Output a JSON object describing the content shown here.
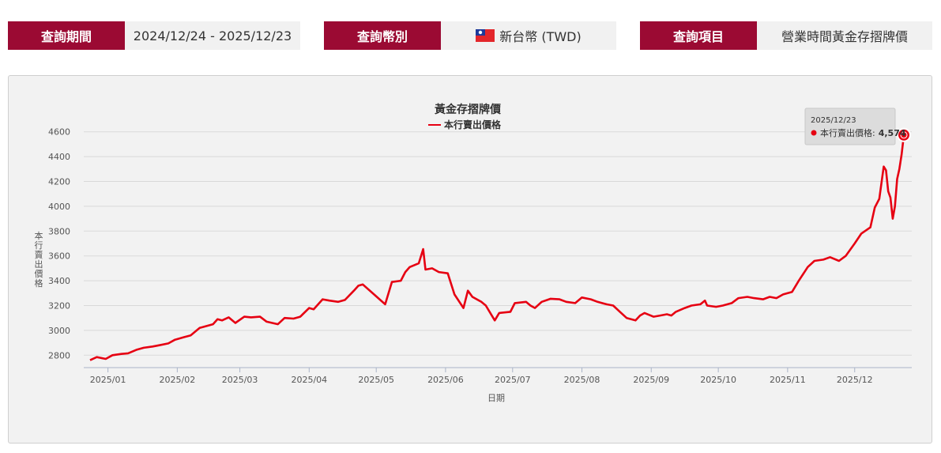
{
  "query_bar": {
    "period_label": "查詢期間",
    "period_value": "2024/12/24 - 2025/12/23",
    "currency_label": "查詢幣別",
    "currency_value": "新台幣 (TWD)",
    "currency_flag_icon": "taiwan-flag-icon",
    "item_label": "查詢項目",
    "item_value": "營業時間黃金存摺牌價"
  },
  "colors": {
    "label_bg": "#9b0a33",
    "value_bg": "#f1f1f1",
    "series_line": "#e60012"
  },
  "chart_data": {
    "type": "line",
    "title": "黃金存摺牌價",
    "xlabel": "日期",
    "ylabel": "本行賣出價格",
    "ylim": [
      2700,
      4700
    ],
    "y_ticks": [
      2800,
      3000,
      3200,
      3400,
      3600,
      3800,
      4000,
      4200,
      4400,
      4600
    ],
    "x_range": [
      "2024-12-24",
      "2025-12-23"
    ],
    "x_ticks": [
      {
        "date": "2025-01-01",
        "label": "2025/01"
      },
      {
        "date": "2025-02-01",
        "label": "2025/02"
      },
      {
        "date": "2025-03-01",
        "label": "2025/03"
      },
      {
        "date": "2025-04-01",
        "label": "2025/04"
      },
      {
        "date": "2025-05-01",
        "label": "2025/05"
      },
      {
        "date": "2025-06-01",
        "label": "2025/06"
      },
      {
        "date": "2025-07-01",
        "label": "2025/07"
      },
      {
        "date": "2025-08-01",
        "label": "2025/08"
      },
      {
        "date": "2025-09-01",
        "label": "2025/09"
      },
      {
        "date": "2025-10-01",
        "label": "2025/10"
      },
      {
        "date": "2025-11-01",
        "label": "2025/11"
      },
      {
        "date": "2025-12-01",
        "label": "2025/12"
      }
    ],
    "grid": "horizontal",
    "legend": "top-center",
    "series": [
      {
        "name": "本行賣出價格",
        "color": "#e60012",
        "points": [
          [
            "2024-12-24",
            2760
          ],
          [
            "2024-12-27",
            2785
          ],
          [
            "2024-12-31",
            2770
          ],
          [
            "2025-01-03",
            2800
          ],
          [
            "2025-01-07",
            2810
          ],
          [
            "2025-01-10",
            2815
          ],
          [
            "2025-01-14",
            2845
          ],
          [
            "2025-01-17",
            2860
          ],
          [
            "2025-01-21",
            2870
          ],
          [
            "2025-01-24",
            2880
          ],
          [
            "2025-01-28",
            2895
          ],
          [
            "2025-01-31",
            2925
          ],
          [
            "2025-02-04",
            2945
          ],
          [
            "2025-02-07",
            2960
          ],
          [
            "2025-02-11",
            3020
          ],
          [
            "2025-02-13",
            3030
          ],
          [
            "2025-02-17",
            3050
          ],
          [
            "2025-02-19",
            3090
          ],
          [
            "2025-02-21",
            3080
          ],
          [
            "2025-02-24",
            3105
          ],
          [
            "2025-02-27",
            3060
          ],
          [
            "2025-03-03",
            3110
          ],
          [
            "2025-03-06",
            3105
          ],
          [
            "2025-03-10",
            3110
          ],
          [
            "2025-03-13",
            3070
          ],
          [
            "2025-03-18",
            3050
          ],
          [
            "2025-03-21",
            3100
          ],
          [
            "2025-03-25",
            3095
          ],
          [
            "2025-03-28",
            3110
          ],
          [
            "2025-04-01",
            3180
          ],
          [
            "2025-04-03",
            3170
          ],
          [
            "2025-04-07",
            3250
          ],
          [
            "2025-04-10",
            3240
          ],
          [
            "2025-04-14",
            3230
          ],
          [
            "2025-04-17",
            3245
          ],
          [
            "2025-04-21",
            3320
          ],
          [
            "2025-04-23",
            3360
          ],
          [
            "2025-04-25",
            3370
          ],
          [
            "2025-04-30",
            3290
          ],
          [
            "2025-05-05",
            3210
          ],
          [
            "2025-05-08",
            3390
          ],
          [
            "2025-05-12",
            3400
          ],
          [
            "2025-05-14",
            3470
          ],
          [
            "2025-05-16",
            3510
          ],
          [
            "2025-05-20",
            3540
          ],
          [
            "2025-05-22",
            3655
          ],
          [
            "2025-05-23",
            3490
          ],
          [
            "2025-05-26",
            3500
          ],
          [
            "2025-05-29",
            3470
          ],
          [
            "2025-06-02",
            3460
          ],
          [
            "2025-06-05",
            3290
          ],
          [
            "2025-06-09",
            3180
          ],
          [
            "2025-06-11",
            3320
          ],
          [
            "2025-06-13",
            3270
          ],
          [
            "2025-06-17",
            3230
          ],
          [
            "2025-06-19",
            3200
          ],
          [
            "2025-06-23",
            3080
          ],
          [
            "2025-06-25",
            3140
          ],
          [
            "2025-06-30",
            3150
          ],
          [
            "2025-07-02",
            3220
          ],
          [
            "2025-07-07",
            3230
          ],
          [
            "2025-07-09",
            3200
          ],
          [
            "2025-07-11",
            3180
          ],
          [
            "2025-07-14",
            3230
          ],
          [
            "2025-07-18",
            3255
          ],
          [
            "2025-07-22",
            3250
          ],
          [
            "2025-07-25",
            3230
          ],
          [
            "2025-07-29",
            3220
          ],
          [
            "2025-08-01",
            3265
          ],
          [
            "2025-08-05",
            3250
          ],
          [
            "2025-08-08",
            3230
          ],
          [
            "2025-08-12",
            3210
          ],
          [
            "2025-08-15",
            3200
          ],
          [
            "2025-08-18",
            3150
          ],
          [
            "2025-08-21",
            3100
          ],
          [
            "2025-08-25",
            3080
          ],
          [
            "2025-08-27",
            3120
          ],
          [
            "2025-08-29",
            3140
          ],
          [
            "2025-09-02",
            3110
          ],
          [
            "2025-09-05",
            3120
          ],
          [
            "2025-09-08",
            3130
          ],
          [
            "2025-09-10",
            3120
          ],
          [
            "2025-09-12",
            3150
          ],
          [
            "2025-09-16",
            3180
          ],
          [
            "2025-09-19",
            3200
          ],
          [
            "2025-09-23",
            3210
          ],
          [
            "2025-09-25",
            3240
          ],
          [
            "2025-09-26",
            3200
          ],
          [
            "2025-09-30",
            3190
          ],
          [
            "2025-10-03",
            3200
          ],
          [
            "2025-10-07",
            3220
          ],
          [
            "2025-10-10",
            3260
          ],
          [
            "2025-10-14",
            3270
          ],
          [
            "2025-10-17",
            3260
          ],
          [
            "2025-10-21",
            3250
          ],
          [
            "2025-10-24",
            3270
          ],
          [
            "2025-10-27",
            3260
          ],
          [
            "2025-10-30",
            3290
          ],
          [
            "2025-11-03",
            3310
          ],
          [
            "2025-11-06",
            3400
          ],
          [
            "2025-11-10",
            3510
          ],
          [
            "2025-11-13",
            3560
          ],
          [
            "2025-11-17",
            3570
          ],
          [
            "2025-11-20",
            3590
          ],
          [
            "2025-11-24",
            3560
          ],
          [
            "2025-11-27",
            3600
          ],
          [
            "2025-12-01",
            3700
          ],
          [
            "2025-12-04",
            3780
          ],
          [
            "2025-12-08",
            3830
          ],
          [
            "2025-12-10",
            3990
          ],
          [
            "2025-12-12",
            4060
          ],
          [
            "2025-12-14",
            4320
          ],
          [
            "2025-12-15",
            4290
          ],
          [
            "2025-12-16",
            4120
          ],
          [
            "2025-12-17",
            4070
          ],
          [
            "2025-12-18",
            3900
          ],
          [
            "2025-12-19",
            4000
          ],
          [
            "2025-12-20",
            4220
          ],
          [
            "2025-12-21",
            4300
          ],
          [
            "2025-12-22",
            4420
          ],
          [
            "2025-12-23",
            4574
          ]
        ]
      }
    ],
    "tooltip": {
      "date": "2025/12/23",
      "series_label": "本行賣出價格:",
      "value": "4,574"
    }
  }
}
